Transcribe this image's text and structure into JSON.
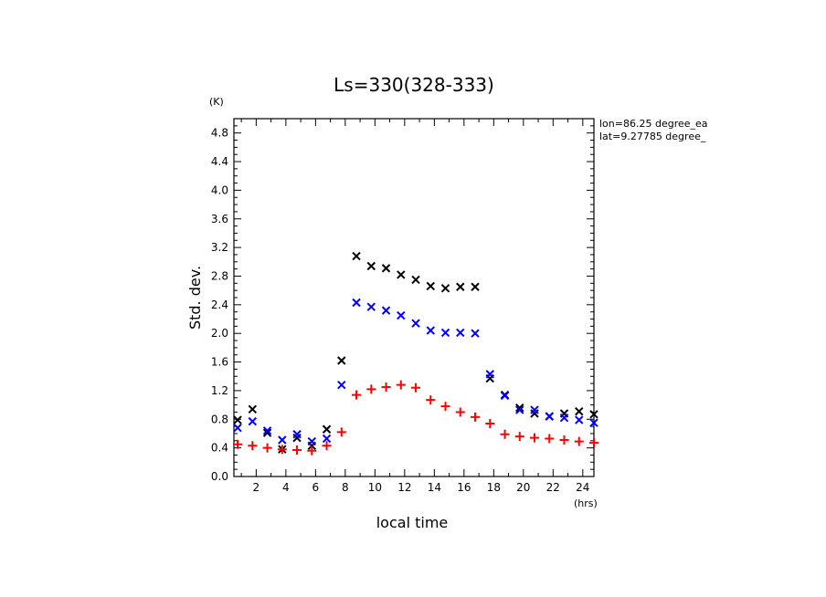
{
  "chart_data": {
    "type": "scatter",
    "title": "Ls=330(328-333)",
    "xlabel": "local time",
    "ylabel": "Std. dev.",
    "xunit": "(hrs)",
    "yunit": "(K)",
    "xlim": [
      0.5,
      24.75
    ],
    "ylim": [
      0,
      5.0
    ],
    "xticks": [
      2,
      4,
      6,
      8,
      10,
      12,
      14,
      16,
      18,
      20,
      22,
      24
    ],
    "yticks": [
      0.0,
      0.4,
      0.8,
      1.2,
      1.6,
      2.0,
      2.4,
      2.8,
      3.2,
      3.6,
      4.0,
      4.4,
      4.8
    ],
    "ytick_labels": [
      "0.0",
      "0.4",
      "0.8",
      "1.2",
      "1.6",
      "2.0",
      "2.4",
      "2.8",
      "3.2",
      "3.6",
      "4.0",
      "4.4",
      "4.8"
    ],
    "annotations": [
      "lon=86.25 degree_ea",
      "lat=9.27785 degree_"
    ],
    "grid": false,
    "series": [
      {
        "marker": "x",
        "color": "#000000",
        "x": [
          0.75,
          1.75,
          2.75,
          3.75,
          4.75,
          5.75,
          6.75,
          7.75,
          8.75,
          9.75,
          10.75,
          11.75,
          12.75,
          13.75,
          14.75,
          15.75,
          16.75,
          17.75,
          18.75,
          19.75,
          20.75,
          21.75,
          22.75,
          23.75,
          24.75
        ],
        "y": [
          0.79,
          0.94,
          0.61,
          0.38,
          0.54,
          0.43,
          0.66,
          1.62,
          3.08,
          2.94,
          2.91,
          2.82,
          2.75,
          2.66,
          2.63,
          2.65,
          2.65,
          1.37,
          1.14,
          0.96,
          0.88,
          0.84,
          0.88,
          0.91,
          0.87
        ]
      },
      {
        "marker": "x",
        "color": "#0000ff",
        "x": [
          0.75,
          1.75,
          2.75,
          3.75,
          4.75,
          5.75,
          6.75,
          7.75,
          8.75,
          9.75,
          10.75,
          11.75,
          12.75,
          13.75,
          14.75,
          15.75,
          16.75,
          17.75,
          18.75,
          19.75,
          20.75,
          21.75,
          22.75,
          23.75,
          24.75
        ],
        "y": [
          0.68,
          0.77,
          0.64,
          0.51,
          0.59,
          0.49,
          0.53,
          1.28,
          2.43,
          2.37,
          2.32,
          2.25,
          2.14,
          2.04,
          2.01,
          2.01,
          2.0,
          1.43,
          1.13,
          0.93,
          0.93,
          0.84,
          0.82,
          0.79,
          0.75
        ]
      },
      {
        "marker": "+",
        "color": "#ff0000",
        "x": [
          0.75,
          1.75,
          2.75,
          3.75,
          4.75,
          5.75,
          6.75,
          7.75,
          8.75,
          9.75,
          10.75,
          11.75,
          12.75,
          13.75,
          14.75,
          15.75,
          16.75,
          17.75,
          18.75,
          19.75,
          20.75,
          21.75,
          22.75,
          23.75,
          24.75
        ],
        "y": [
          0.45,
          0.43,
          0.4,
          0.38,
          0.37,
          0.36,
          0.43,
          0.62,
          1.14,
          1.22,
          1.25,
          1.28,
          1.24,
          1.07,
          0.98,
          0.9,
          0.83,
          0.74,
          0.59,
          0.56,
          0.54,
          0.53,
          0.51,
          0.49,
          0.47
        ]
      }
    ]
  }
}
